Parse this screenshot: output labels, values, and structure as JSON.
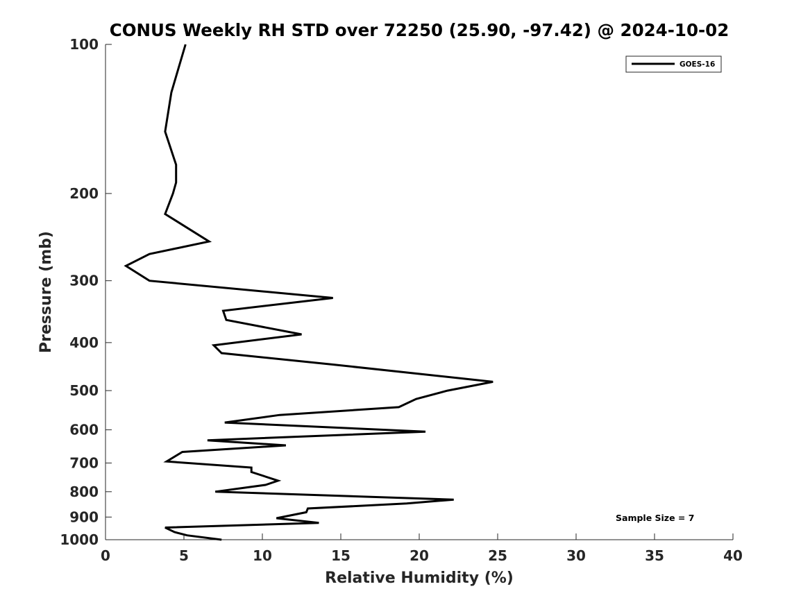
{
  "chart_data": {
    "type": "line",
    "title": "CONUS Weekly RH STD over 72250 (25.90, -97.42) @ 2024-10-02",
    "xlabel": "Relative Humidity (%)",
    "ylabel": "Pressure (mb)",
    "xlim": [
      0,
      40
    ],
    "ylim": [
      1000,
      100
    ],
    "y_scale": "log",
    "x_ticks": [
      "0",
      "5",
      "10",
      "15",
      "20",
      "25",
      "30",
      "35",
      "40"
    ],
    "y_ticks": [
      "100",
      "200",
      "300",
      "400",
      "500",
      "600",
      "700",
      "800",
      "900",
      "1000"
    ],
    "grid": false,
    "legend": {
      "placement": "top-right",
      "entries": [
        "GOES-16"
      ]
    },
    "annotation": "Sample Size = 7",
    "line_color": "#000000",
    "series": [
      {
        "name": "GOES-16",
        "points": [
          [
            5.1,
            100
          ],
          [
            4.2,
            125
          ],
          [
            3.8,
            150
          ],
          [
            4.5,
            175
          ],
          [
            4.5,
            190
          ],
          [
            4.3,
            200
          ],
          [
            3.8,
            220
          ],
          [
            6.6,
            250
          ],
          [
            2.8,
            265
          ],
          [
            1.3,
            280
          ],
          [
            2.8,
            300
          ],
          [
            14.5,
            325
          ],
          [
            7.5,
            345
          ],
          [
            7.7,
            360
          ],
          [
            12.5,
            385
          ],
          [
            6.9,
            405
          ],
          [
            7.4,
            420
          ],
          [
            14.5,
            443
          ],
          [
            24.7,
            480
          ],
          [
            21.8,
            500
          ],
          [
            19.8,
            520
          ],
          [
            18.7,
            540
          ],
          [
            11.1,
            560
          ],
          [
            7.6,
            580
          ],
          [
            20.4,
            605
          ],
          [
            6.5,
            630
          ],
          [
            11.5,
            645
          ],
          [
            4.9,
            665
          ],
          [
            3.9,
            695
          ],
          [
            9.3,
            715
          ],
          [
            9.3,
            730
          ],
          [
            11.0,
            760
          ],
          [
            10.2,
            775
          ],
          [
            7.0,
            800
          ],
          [
            22.2,
            830
          ],
          [
            19.2,
            845
          ],
          [
            12.9,
            865
          ],
          [
            12.8,
            880
          ],
          [
            10.9,
            905
          ],
          [
            13.6,
            925
          ],
          [
            3.8,
            945
          ],
          [
            4.4,
            965
          ],
          [
            5.2,
            980
          ],
          [
            7.4,
            1000
          ]
        ]
      }
    ]
  }
}
